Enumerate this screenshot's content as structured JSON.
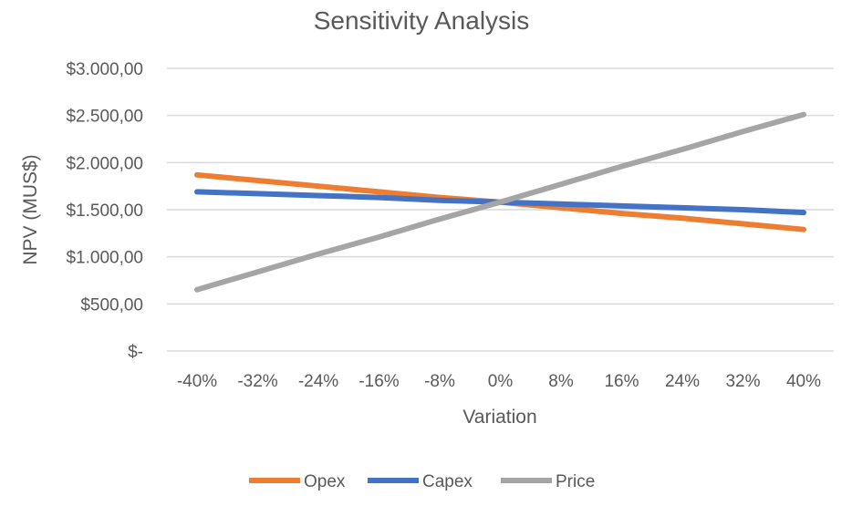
{
  "chart_data": {
    "type": "line",
    "title": "Sensitivity Analysis",
    "xlabel": "Variation",
    "ylabel": "NPV (MUS$)",
    "categories": [
      "-40%",
      "-32%",
      "-24%",
      "-16%",
      "-8%",
      "0%",
      "8%",
      "16%",
      "24%",
      "32%",
      "40%"
    ],
    "ylim": [
      0,
      3000
    ],
    "yticks": [
      {
        "value": 0,
        "label": "$-"
      },
      {
        "value": 500,
        "label": "$500,00"
      },
      {
        "value": 1000,
        "label": "$1.000,00"
      },
      {
        "value": 1500,
        "label": "$1.500,00"
      },
      {
        "value": 2000,
        "label": "$2.000,00"
      },
      {
        "value": 2500,
        "label": "$2.500,00"
      },
      {
        "value": 3000,
        "label": "$3.000,00"
      }
    ],
    "grid": true,
    "legend": "bottom",
    "series": [
      {
        "name": "Opex",
        "color": "#ED7D31",
        "values": [
          1870,
          1810,
          1750,
          1690,
          1630,
          1580,
          1520,
          1460,
          1410,
          1350,
          1290
        ]
      },
      {
        "name": "Capex",
        "color": "#4472C4",
        "values": [
          1690,
          1670,
          1650,
          1630,
          1600,
          1580,
          1560,
          1540,
          1520,
          1500,
          1470
        ]
      },
      {
        "name": "Price",
        "color": "#A5A5A5",
        "values": [
          650,
          840,
          1030,
          1210,
          1400,
          1580,
          1770,
          1960,
          2140,
          2330,
          2510
        ]
      }
    ]
  }
}
